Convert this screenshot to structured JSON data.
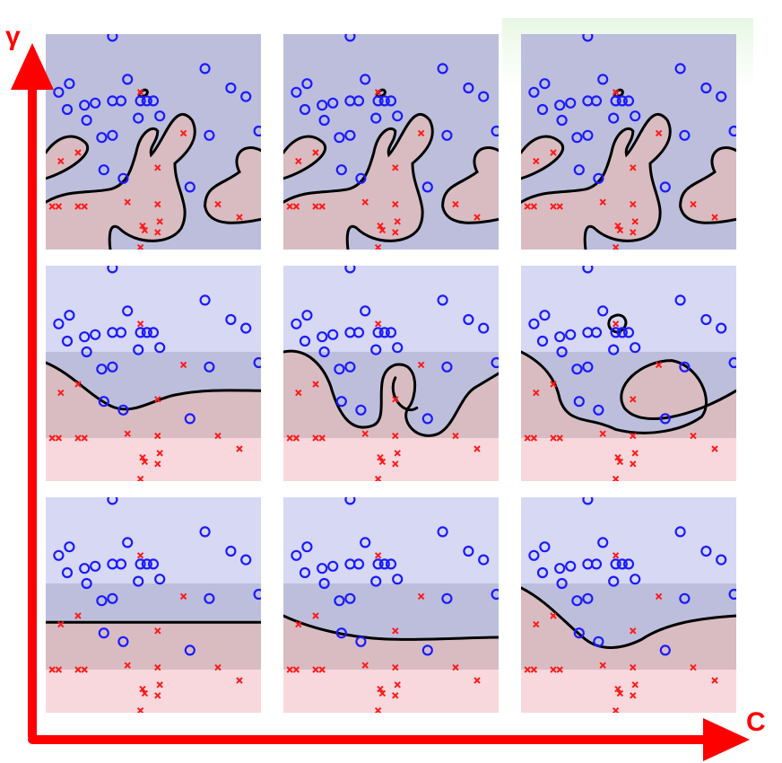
{
  "axes": {
    "y_label": "γ",
    "x_label": "C",
    "color": "#ff0000"
  },
  "colors": {
    "class_o": "#1a1aff",
    "class_x": "#ff1a1a",
    "region_blue_strong": "#bcbedc",
    "region_blue_light": "#d6d8f4",
    "region_red_strong": "#d8bcc2",
    "region_red_light": "#f8d8dc",
    "boundary": "#000000"
  },
  "points": {
    "o": [
      [
        0.31,
        0.01
      ],
      [
        0.74,
        0.16
      ],
      [
        0.38,
        0.21
      ],
      [
        0.35,
        0.31
      ],
      [
        0.18,
        0.33
      ],
      [
        0.23,
        0.32
      ],
      [
        0.31,
        0.31
      ],
      [
        0.44,
        0.31
      ],
      [
        0.47,
        0.31
      ],
      [
        0.5,
        0.31
      ],
      [
        0.86,
        0.25
      ],
      [
        0.93,
        0.29
      ],
      [
        0.1,
        0.35
      ],
      [
        0.19,
        0.4
      ],
      [
        0.06,
        0.27
      ],
      [
        0.11,
        0.23
      ],
      [
        0.26,
        0.48
      ],
      [
        0.31,
        0.47
      ],
      [
        0.43,
        0.39
      ],
      [
        0.53,
        0.38
      ],
      [
        0.76,
        0.47
      ],
      [
        0.99,
        0.45
      ],
      [
        0.27,
        0.63
      ],
      [
        0.36,
        0.67
      ],
      [
        0.67,
        0.71
      ]
    ],
    "x": [
      [
        0.44,
        0.27
      ],
      [
        0.64,
        0.46
      ],
      [
        0.07,
        0.59
      ],
      [
        0.15,
        0.55
      ],
      [
        0.52,
        0.62
      ],
      [
        0.03,
        0.8
      ],
      [
        0.06,
        0.8
      ],
      [
        0.15,
        0.8
      ],
      [
        0.18,
        0.8
      ],
      [
        0.38,
        0.78
      ],
      [
        0.52,
        0.79
      ],
      [
        0.8,
        0.79
      ],
      [
        0.53,
        0.87
      ],
      [
        0.45,
        0.89
      ],
      [
        0.46,
        0.91
      ],
      [
        0.52,
        0.92
      ],
      [
        0.9,
        0.85
      ],
      [
        0.44,
        0.99
      ]
    ]
  },
  "panels": [
    {
      "row": 0,
      "col": 0,
      "boundary": "wiggly",
      "variant": 0
    },
    {
      "row": 0,
      "col": 1,
      "boundary": "wiggly",
      "variant": 1
    },
    {
      "row": 0,
      "col": 2,
      "boundary": "wiggly",
      "variant": 2
    },
    {
      "row": 1,
      "col": 0,
      "boundary": "soft",
      "variant": 0
    },
    {
      "row": 1,
      "col": 1,
      "boundary": "curly",
      "variant": 1
    },
    {
      "row": 1,
      "col": 2,
      "boundary": "loopy",
      "variant": 2
    },
    {
      "row": 2,
      "col": 0,
      "boundary": "flat",
      "variant": 0
    },
    {
      "row": 2,
      "col": 1,
      "boundary": "gentle",
      "variant": 1
    },
    {
      "row": 2,
      "col": 2,
      "boundary": "dip",
      "variant": 2
    }
  ]
}
